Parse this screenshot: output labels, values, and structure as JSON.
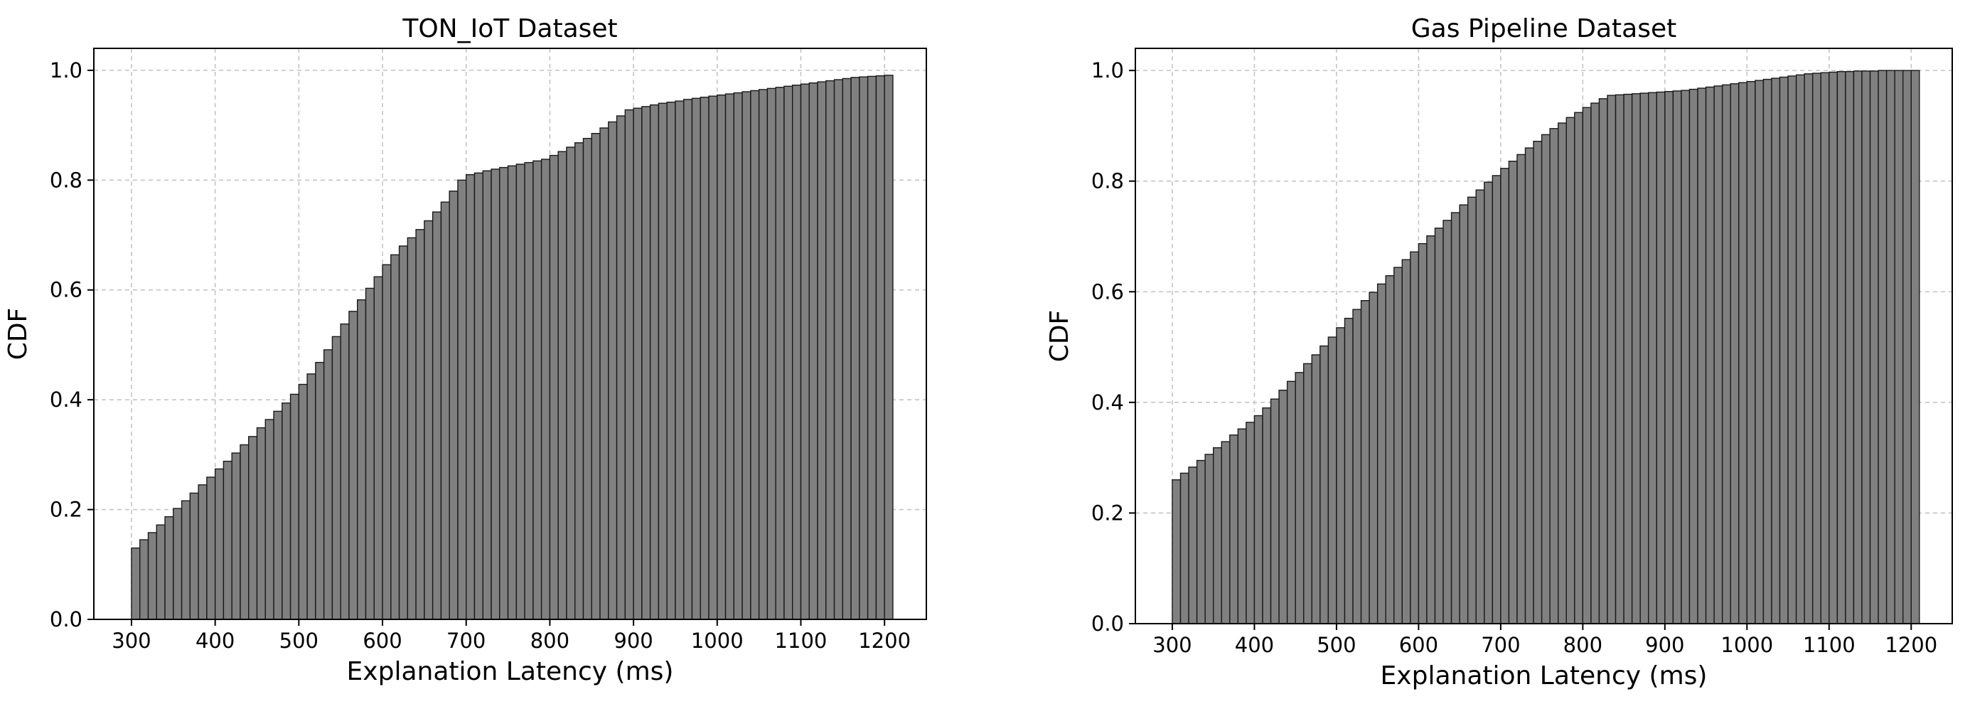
{
  "chart_data": [
    {
      "type": "bar",
      "title": "TON_IoT Dataset",
      "xlabel": "Explanation Latency (ms)",
      "ylabel": "CDF",
      "xlim": [
        255,
        1250
      ],
      "ylim": [
        0,
        1.04
      ],
      "xticks": [
        300,
        400,
        500,
        600,
        700,
        800,
        900,
        1000,
        1100,
        1200
      ],
      "yticks": [
        0.0,
        0.2,
        0.4,
        0.6,
        0.8,
        1.0
      ],
      "xtick_labels": [
        "300",
        "400",
        "500",
        "600",
        "700",
        "800",
        "900",
        "1000",
        "1100",
        "1200"
      ],
      "ytick_labels": [
        "0.0",
        "0.2",
        "0.4",
        "0.6",
        "0.8",
        "1.0"
      ],
      "grid": true,
      "bin_width": 10,
      "x_start": 300,
      "values": [
        0.13,
        0.145,
        0.158,
        0.172,
        0.187,
        0.202,
        0.216,
        0.23,
        0.245,
        0.259,
        0.274,
        0.288,
        0.303,
        0.318,
        0.333,
        0.349,
        0.364,
        0.379,
        0.394,
        0.41,
        0.428,
        0.447,
        0.468,
        0.491,
        0.515,
        0.538,
        0.561,
        0.582,
        0.603,
        0.624,
        0.646,
        0.664,
        0.68,
        0.695,
        0.71,
        0.726,
        0.742,
        0.76,
        0.78,
        0.8,
        0.81,
        0.813,
        0.817,
        0.82,
        0.823,
        0.826,
        0.829,
        0.832,
        0.835,
        0.838,
        0.845,
        0.852,
        0.86,
        0.868,
        0.876,
        0.885,
        0.895,
        0.906,
        0.917,
        0.928,
        0.931,
        0.934,
        0.937,
        0.94,
        0.942,
        0.944,
        0.947,
        0.949,
        0.951,
        0.953,
        0.955,
        0.957,
        0.959,
        0.961,
        0.963,
        0.965,
        0.967,
        0.969,
        0.971,
        0.973,
        0.975,
        0.977,
        0.979,
        0.981,
        0.983,
        0.985,
        0.987,
        0.988,
        0.989,
        0.99,
        0.991
      ]
    },
    {
      "type": "bar",
      "title": "Gas Pipeline Dataset",
      "xlabel": "Explanation Latency (ms)",
      "ylabel": "CDF",
      "xlim": [
        255,
        1250
      ],
      "ylim": [
        0,
        1.04
      ],
      "xticks": [
        300,
        400,
        500,
        600,
        700,
        800,
        900,
        1000,
        1100,
        1200
      ],
      "yticks": [
        0.0,
        0.2,
        0.4,
        0.6,
        0.8,
        1.0
      ],
      "xtick_labels": [
        "300",
        "400",
        "500",
        "600",
        "700",
        "800",
        "900",
        "1000",
        "1100",
        "1200"
      ],
      "ytick_labels": [
        "0.0",
        "0.2",
        "0.4",
        "0.6",
        "0.8",
        "1.0"
      ],
      "grid": true,
      "bin_width": 10,
      "x_start": 300,
      "values": [
        0.26,
        0.272,
        0.283,
        0.295,
        0.306,
        0.318,
        0.329,
        0.341,
        0.352,
        0.364,
        0.376,
        0.39,
        0.406,
        0.422,
        0.438,
        0.454,
        0.47,
        0.486,
        0.502,
        0.518,
        0.535,
        0.552,
        0.568,
        0.584,
        0.599,
        0.614,
        0.629,
        0.644,
        0.658,
        0.672,
        0.687,
        0.701,
        0.715,
        0.729,
        0.743,
        0.757,
        0.771,
        0.784,
        0.798,
        0.81,
        0.823,
        0.836,
        0.848,
        0.86,
        0.872,
        0.884,
        0.895,
        0.905,
        0.915,
        0.924,
        0.933,
        0.941,
        0.949,
        0.955,
        0.956,
        0.957,
        0.958,
        0.959,
        0.96,
        0.961,
        0.962,
        0.963,
        0.964,
        0.966,
        0.968,
        0.97,
        0.972,
        0.974,
        0.976,
        0.978,
        0.98,
        0.982,
        0.984,
        0.986,
        0.988,
        0.99,
        0.992,
        0.994,
        0.995,
        0.996,
        0.997,
        0.998,
        0.998,
        0.999,
        0.999,
        0.999,
        1.0,
        1.0,
        1.0,
        1.0,
        1.0
      ]
    }
  ]
}
